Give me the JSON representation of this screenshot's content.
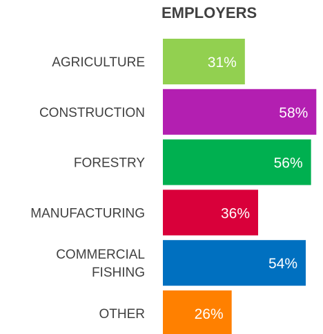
{
  "chart_data": {
    "type": "bar",
    "orientation": "horizontal",
    "title": "EMPLOYERS",
    "categories": [
      [
        "AGRICULTURE"
      ],
      [
        "CONSTRUCTION"
      ],
      [
        "FORESTRY"
      ],
      [
        "MANUFACTURING"
      ],
      [
        "COMMERCIAL",
        "FISHING"
      ],
      [
        "OTHER"
      ]
    ],
    "values": [
      31,
      58,
      56,
      36,
      54,
      26
    ],
    "value_labels": [
      "31%",
      "58%",
      "56%",
      "36%",
      "54%",
      "26%"
    ],
    "colors": [
      "#92d050",
      "#b31fb1",
      "#00b050",
      "#d9003a",
      "#0070c0",
      "#ff8000"
    ],
    "label_color": "#404040",
    "value_label_color": "#ffffff",
    "xlim": [
      0,
      60
    ],
    "grid": false,
    "legend": "none"
  }
}
